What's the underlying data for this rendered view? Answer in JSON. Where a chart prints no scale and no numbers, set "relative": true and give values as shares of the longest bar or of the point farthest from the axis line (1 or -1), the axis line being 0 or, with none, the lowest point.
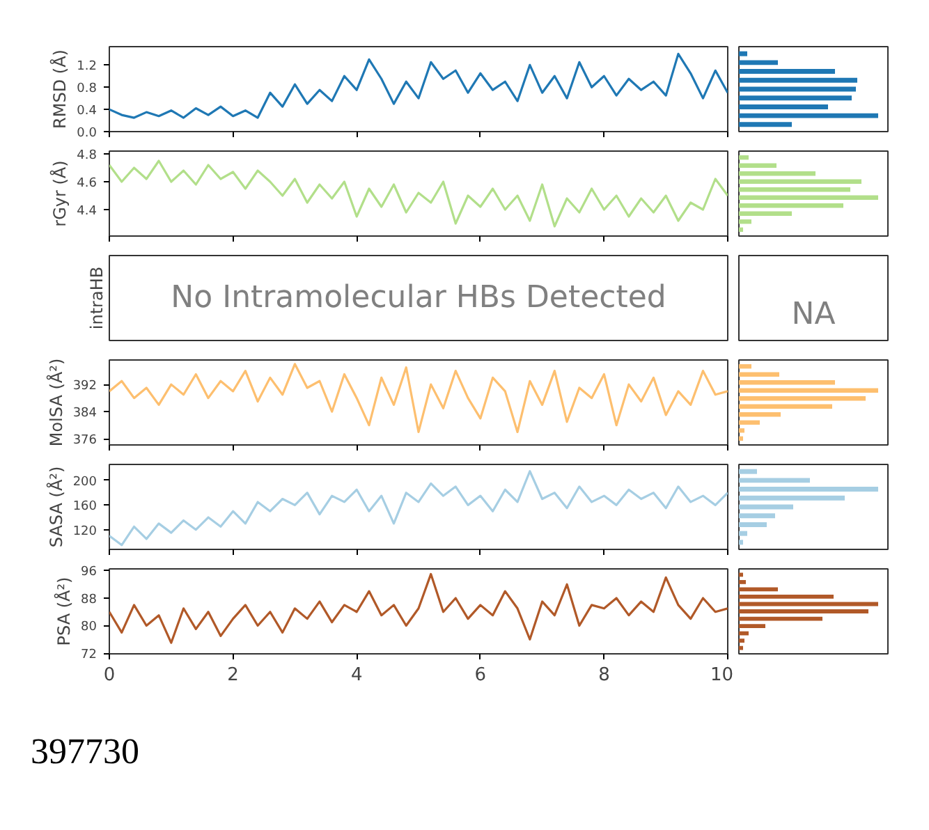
{
  "chart_data": [
    {
      "type": "line",
      "ylabel": "RMSD (Å)",
      "color": "#1f78b4",
      "xlim": [
        0,
        10
      ],
      "xticks": [
        0,
        2,
        4,
        6,
        8,
        10
      ],
      "ylim": [
        0,
        1.53
      ],
      "yticks": [
        {
          "value": 0,
          "label": "0.0"
        },
        {
          "value": 0.4,
          "label": "0.4"
        },
        {
          "value": 0.8,
          "label": "0.8"
        },
        {
          "value": 1.2,
          "label": "1.2"
        }
      ],
      "tick_labels": "y",
      "x": [
        0,
        0.2,
        0.4,
        0.6,
        0.8,
        1,
        1.2,
        1.4,
        1.6,
        1.8,
        2,
        2.2,
        2.4,
        2.6,
        2.8,
        3,
        3.2,
        3.4,
        3.6,
        3.8,
        4,
        4.2,
        4.4,
        4.6,
        4.8,
        5,
        5.2,
        5.4,
        5.6,
        5.8,
        6,
        6.2,
        6.4,
        6.6,
        6.8,
        7,
        7.2,
        7.4,
        7.6,
        7.8,
        8,
        8.2,
        8.4,
        8.6,
        8.8,
        9,
        9.2,
        9.4,
        9.6,
        9.8,
        10
      ],
      "values": [
        0.4,
        0.3,
        0.25,
        0.35,
        0.28,
        0.38,
        0.25,
        0.42,
        0.3,
        0.45,
        0.28,
        0.38,
        0.25,
        0.7,
        0.45,
        0.85,
        0.5,
        0.75,
        0.55,
        1.0,
        0.75,
        1.3,
        0.95,
        0.5,
        0.9,
        0.6,
        1.25,
        0.95,
        1.1,
        0.7,
        1.05,
        0.75,
        0.9,
        0.55,
        1.2,
        0.7,
        1.0,
        0.6,
        1.25,
        0.8,
        1.0,
        0.65,
        0.95,
        0.75,
        0.9,
        0.65,
        1.4,
        1.05,
        0.6,
        1.1,
        0.7
      ]
    },
    {
      "type": "bar",
      "orientation": "horizontal",
      "relative": true,
      "color": "#1f78b4",
      "categories": [
        null,
        null,
        null,
        null,
        null,
        null,
        null,
        null,
        null
      ],
      "values": [
        0.06,
        0.28,
        0.69,
        0.85,
        0.84,
        0.81,
        0.64,
        1,
        0.38
      ]
    },
    {
      "type": "line",
      "ylabel": "rGyr (Å)",
      "color": "#b2df8a",
      "xlim": [
        0,
        10
      ],
      "xticks": [
        0,
        2,
        4,
        6,
        8,
        10
      ],
      "ylim": [
        4.21,
        4.82
      ],
      "yticks": [
        4.4,
        4.6,
        4.8
      ],
      "tick_labels": "y",
      "x": [
        0,
        0.2,
        0.4,
        0.6,
        0.8,
        1,
        1.2,
        1.4,
        1.6,
        1.8,
        2,
        2.2,
        2.4,
        2.6,
        2.8,
        3,
        3.2,
        3.4,
        3.6,
        3.8,
        4,
        4.2,
        4.4,
        4.6,
        4.8,
        5,
        5.2,
        5.4,
        5.6,
        5.8,
        6,
        6.2,
        6.4,
        6.6,
        6.8,
        7,
        7.2,
        7.4,
        7.6,
        7.8,
        8,
        8.2,
        8.4,
        8.6,
        8.8,
        9,
        9.2,
        9.4,
        9.6,
        9.8,
        10
      ],
      "values": [
        4.72,
        4.6,
        4.7,
        4.62,
        4.75,
        4.6,
        4.68,
        4.58,
        4.72,
        4.62,
        4.67,
        4.55,
        4.68,
        4.6,
        4.5,
        4.62,
        4.45,
        4.58,
        4.48,
        4.6,
        4.35,
        4.55,
        4.42,
        4.58,
        4.38,
        4.52,
        4.45,
        4.6,
        4.3,
        4.5,
        4.42,
        4.55,
        4.4,
        4.5,
        4.32,
        4.58,
        4.28,
        4.48,
        4.38,
        4.55,
        4.4,
        4.5,
        4.35,
        4.48,
        4.38,
        4.5,
        4.32,
        4.45,
        4.4,
        4.62,
        4.5
      ]
    },
    {
      "type": "bar",
      "orientation": "horizontal",
      "relative": true,
      "color": "#b2df8a",
      "categories": [
        null,
        null,
        null,
        null,
        null,
        null,
        null,
        null,
        null,
        null
      ],
      "values": [
        0.07,
        0.27,
        0.55,
        0.88,
        0.8,
        1,
        0.75,
        0.38,
        0.09,
        0.03
      ]
    },
    {
      "type": "other",
      "ylabel": "intraHB",
      "annotations": [
        "No Intramolecular HBs Detected"
      ]
    },
    {
      "type": "other",
      "annotations": [
        "NA"
      ]
    },
    {
      "type": "line",
      "ylabel": "MolSA (Å²)",
      "color": "#fdbf6f",
      "xlim": [
        0,
        10
      ],
      "xticks": [
        0,
        2,
        4,
        6,
        8,
        10
      ],
      "ylim": [
        374.2,
        399.2
      ],
      "yticks": [
        376,
        384,
        392
      ],
      "tick_labels": "y",
      "x": [
        0,
        0.2,
        0.4,
        0.6,
        0.8,
        1,
        1.2,
        1.4,
        1.6,
        1.8,
        2,
        2.2,
        2.4,
        2.6,
        2.8,
        3,
        3.2,
        3.4,
        3.6,
        3.8,
        4,
        4.2,
        4.4,
        4.6,
        4.8,
        5,
        5.2,
        5.4,
        5.6,
        5.8,
        6,
        6.2,
        6.4,
        6.6,
        6.8,
        7,
        7.2,
        7.4,
        7.6,
        7.8,
        8,
        8.2,
        8.4,
        8.6,
        8.8,
        9,
        9.2,
        9.4,
        9.6,
        9.8,
        10
      ],
      "values": [
        390,
        393,
        388,
        391,
        386,
        392,
        389,
        395,
        388,
        393,
        390,
        396,
        387,
        394,
        389,
        398,
        391,
        393,
        384,
        395,
        388,
        380,
        394,
        386,
        397,
        378,
        392,
        385,
        396,
        388,
        382,
        394,
        390,
        378,
        393,
        386,
        396,
        381,
        391,
        388,
        395,
        380,
        392,
        387,
        394,
        383,
        390,
        386,
        396,
        389,
        390
      ]
    },
    {
      "type": "bar",
      "orientation": "horizontal",
      "relative": true,
      "color": "#fdbf6f",
      "categories": [
        null,
        null,
        null,
        null,
        null,
        null,
        null,
        null,
        null,
        null
      ],
      "values": [
        0.09,
        0.29,
        0.69,
        1,
        0.91,
        0.67,
        0.3,
        0.15,
        0.04,
        0.03
      ]
    },
    {
      "type": "line",
      "ylabel": "SASA (Å²)",
      "color": "#a6cee3",
      "xlim": [
        0,
        10
      ],
      "xticks": [
        0,
        2,
        4,
        6,
        8,
        10
      ],
      "ylim": [
        88,
        226
      ],
      "yticks": [
        120,
        160,
        200
      ],
      "tick_labels": "y",
      "x": [
        0,
        0.2,
        0.4,
        0.6,
        0.8,
        1,
        1.2,
        1.4,
        1.6,
        1.8,
        2,
        2.2,
        2.4,
        2.6,
        2.8,
        3,
        3.2,
        3.4,
        3.6,
        3.8,
        4,
        4.2,
        4.4,
        4.6,
        4.8,
        5,
        5.2,
        5.4,
        5.6,
        5.8,
        6,
        6.2,
        6.4,
        6.6,
        6.8,
        7,
        7.2,
        7.4,
        7.6,
        7.8,
        8,
        8.2,
        8.4,
        8.6,
        8.8,
        9,
        9.2,
        9.4,
        9.6,
        9.8,
        10
      ],
      "values": [
        110,
        95,
        125,
        105,
        130,
        115,
        135,
        120,
        140,
        125,
        150,
        130,
        165,
        150,
        170,
        160,
        180,
        145,
        175,
        165,
        185,
        150,
        175,
        130,
        180,
        165,
        195,
        175,
        190,
        160,
        175,
        150,
        185,
        165,
        215,
        170,
        180,
        155,
        190,
        165,
        175,
        160,
        185,
        170,
        180,
        155,
        190,
        165,
        175,
        160,
        180
      ]
    },
    {
      "type": "bar",
      "orientation": "horizontal",
      "relative": true,
      "color": "#a6cee3",
      "categories": [
        null,
        null,
        null,
        null,
        null,
        null,
        null,
        null,
        null
      ],
      "values": [
        0.13,
        0.51,
        1,
        0.76,
        0.39,
        0.26,
        0.2,
        0.06,
        0.03
      ]
    },
    {
      "type": "line",
      "ylabel": "PSA (Å²)",
      "color": "#b15928",
      "xlim": [
        0,
        10
      ],
      "xticks": [
        0,
        2,
        4,
        6,
        8,
        10
      ],
      "ylim": [
        71.8,
        96.5
      ],
      "yticks": [
        72,
        80,
        88,
        96
      ],
      "annotations": [
        "397730"
      ],
      "x": [
        0,
        0.2,
        0.4,
        0.6,
        0.8,
        1,
        1.2,
        1.4,
        1.6,
        1.8,
        2,
        2.2,
        2.4,
        2.6,
        2.8,
        3,
        3.2,
        3.4,
        3.6,
        3.8,
        4,
        4.2,
        4.4,
        4.6,
        4.8,
        5,
        5.2,
        5.4,
        5.6,
        5.8,
        6,
        6.2,
        6.4,
        6.6,
        6.8,
        7,
        7.2,
        7.4,
        7.6,
        7.8,
        8,
        8.2,
        8.4,
        8.6,
        8.8,
        9,
        9.2,
        9.4,
        9.6,
        9.8,
        10
      ],
      "values": [
        84,
        78,
        86,
        80,
        83,
        75,
        85,
        79,
        84,
        77,
        82,
        86,
        80,
        84,
        78,
        85,
        82,
        87,
        81,
        86,
        84,
        90,
        83,
        86,
        80,
        85,
        95,
        84,
        88,
        82,
        86,
        83,
        90,
        85,
        76,
        87,
        83,
        92,
        80,
        86,
        85,
        88,
        83,
        87,
        84,
        94,
        86,
        82,
        88,
        84,
        85
      ]
    },
    {
      "type": "bar",
      "orientation": "horizontal",
      "relative": true,
      "color": "#b15928",
      "categories": [
        null,
        null,
        null,
        null,
        null,
        null,
        null,
        null,
        null,
        null,
        null
      ],
      "values": [
        0.03,
        0.05,
        0.28,
        0.68,
        1,
        0.93,
        0.6,
        0.19,
        0.07,
        0.04,
        0.03
      ]
    }
  ]
}
